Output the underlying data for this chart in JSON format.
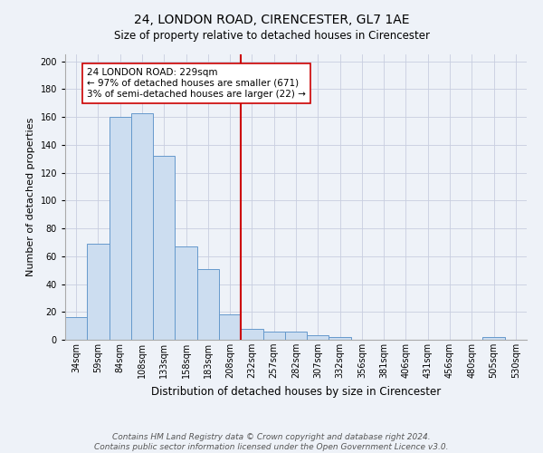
{
  "title": "24, LONDON ROAD, CIRENCESTER, GL7 1AE",
  "subtitle": "Size of property relative to detached houses in Cirencester",
  "xlabel": "Distribution of detached houses by size in Cirencester",
  "ylabel": "Number of detached properties",
  "footnote1": "Contains HM Land Registry data © Crown copyright and database right 2024.",
  "footnote2": "Contains public sector information licensed under the Open Government Licence v3.0.",
  "bar_labels": [
    "34sqm",
    "59sqm",
    "84sqm",
    "108sqm",
    "133sqm",
    "158sqm",
    "183sqm",
    "208sqm",
    "232sqm",
    "257sqm",
    "282sqm",
    "307sqm",
    "332sqm",
    "356sqm",
    "381sqm",
    "406sqm",
    "431sqm",
    "456sqm",
    "480sqm",
    "505sqm",
    "530sqm"
  ],
  "bar_values": [
    16,
    69,
    160,
    163,
    132,
    67,
    51,
    18,
    8,
    6,
    6,
    3,
    2,
    0,
    0,
    0,
    0,
    0,
    0,
    2,
    0
  ],
  "bar_color": "#ccddf0",
  "bar_edge_color": "#6699cc",
  "vline_color": "#cc0000",
  "ylim": [
    0,
    205
  ],
  "yticks": [
    0,
    20,
    40,
    60,
    80,
    100,
    120,
    140,
    160,
    180,
    200
  ],
  "annotation_title": "24 LONDON ROAD: 229sqm",
  "annotation_line1": "← 97% of detached houses are smaller (671)",
  "annotation_line2": "3% of semi-detached houses are larger (22) →",
  "annotation_box_color": "#ffffff",
  "annotation_box_edge": "#cc0000",
  "bg_color": "#eef2f8",
  "grid_color": "#c8cee0",
  "title_fontsize": 10,
  "subtitle_fontsize": 8.5,
  "xlabel_fontsize": 8.5,
  "ylabel_fontsize": 8,
  "tick_fontsize": 7,
  "footnote_fontsize": 6.5
}
